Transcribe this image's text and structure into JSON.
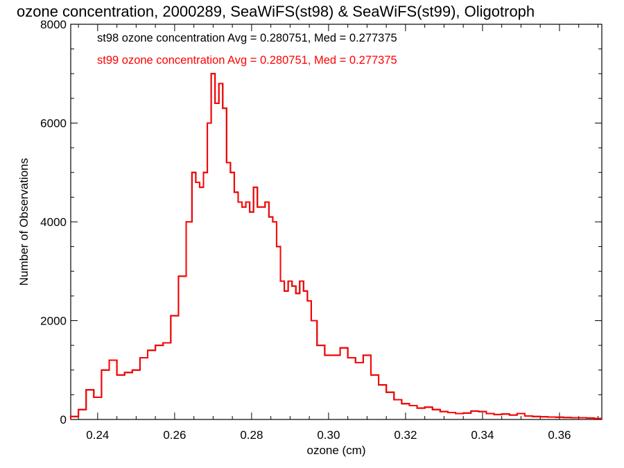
{
  "chart_data": {
    "type": "line",
    "style": "histogram-step",
    "title": "ozone concentration, 2000289, SeaWiFS(st98) & SeaWiFS(st99), Oligotroph",
    "xlabel": "ozone (cm)",
    "ylabel": "Number of Observations",
    "xlim": [
      0.233,
      0.371
    ],
    "ylim": [
      0,
      8000
    ],
    "x_ticks": [
      0.24,
      0.26,
      0.28,
      0.3,
      0.32,
      0.34,
      0.36
    ],
    "x_tick_labels": [
      "0.24",
      "0.26",
      "0.28",
      "0.30",
      "0.32",
      "0.34",
      "0.36"
    ],
    "y_ticks": [
      0,
      2000,
      4000,
      6000,
      8000
    ],
    "y_tick_labels": [
      "0",
      "2000",
      "4000",
      "6000",
      "8000"
    ],
    "grid": false,
    "annotations": [
      {
        "text": "st98 ozone concentration Avg = 0.280751, Med = 0.277375",
        "color": "#000000"
      },
      {
        "text": "st99 ozone concentration Avg = 0.280751, Med = 0.277375",
        "color": "#ff0000"
      }
    ],
    "series": [
      {
        "color": "#000000",
        "x": [
          0.234,
          0.236,
          0.238,
          0.24,
          0.242,
          0.244,
          0.246,
          0.248,
          0.25,
          0.252,
          0.254,
          0.256,
          0.258,
          0.26,
          0.262,
          0.264,
          0.265,
          0.266,
          0.267,
          0.268,
          0.269,
          0.27,
          0.271,
          0.272,
          0.273,
          0.274,
          0.275,
          0.276,
          0.277,
          0.278,
          0.279,
          0.28,
          0.281,
          0.282,
          0.283,
          0.284,
          0.285,
          0.286,
          0.287,
          0.288,
          0.289,
          0.29,
          0.291,
          0.292,
          0.293,
          0.294,
          0.295,
          0.296,
          0.298,
          0.3,
          0.302,
          0.304,
          0.306,
          0.308,
          0.31,
          0.312,
          0.314,
          0.316,
          0.318,
          0.32,
          0.322,
          0.324,
          0.326,
          0.328,
          0.33,
          0.332,
          0.334,
          0.336,
          0.338,
          0.34,
          0.342,
          0.344,
          0.346,
          0.348,
          0.35,
          0.352,
          0.354,
          0.356,
          0.358,
          0.36,
          0.362,
          0.364,
          0.366,
          0.368,
          0.37
        ],
        "values": [
          60,
          200,
          600,
          450,
          1000,
          1200,
          900,
          950,
          1000,
          1250,
          1400,
          1500,
          1550,
          2100,
          2900,
          4000,
          5000,
          4800,
          4700,
          5000,
          6000,
          7000,
          6400,
          6800,
          6300,
          5200,
          5000,
          4600,
          4400,
          4300,
          4400,
          4200,
          4700,
          4300,
          4300,
          4400,
          4100,
          4000,
          3500,
          2800,
          2600,
          2800,
          2700,
          2550,
          2800,
          2600,
          2400,
          2000,
          1500,
          1300,
          1300,
          1450,
          1250,
          1150,
          1300,
          900,
          700,
          550,
          400,
          320,
          280,
          230,
          250,
          200,
          160,
          140,
          120,
          130,
          170,
          160,
          120,
          100,
          110,
          90,
          120,
          70,
          60,
          55,
          50,
          45,
          40,
          35,
          35,
          30,
          20
        ]
      },
      {
        "color": "#ff0000",
        "x": [
          0.234,
          0.236,
          0.238,
          0.24,
          0.242,
          0.244,
          0.246,
          0.248,
          0.25,
          0.252,
          0.254,
          0.256,
          0.258,
          0.26,
          0.262,
          0.264,
          0.265,
          0.266,
          0.267,
          0.268,
          0.269,
          0.27,
          0.271,
          0.272,
          0.273,
          0.274,
          0.275,
          0.276,
          0.277,
          0.278,
          0.279,
          0.28,
          0.281,
          0.282,
          0.283,
          0.284,
          0.285,
          0.286,
          0.287,
          0.288,
          0.289,
          0.29,
          0.291,
          0.292,
          0.293,
          0.294,
          0.295,
          0.296,
          0.298,
          0.3,
          0.302,
          0.304,
          0.306,
          0.308,
          0.31,
          0.312,
          0.314,
          0.316,
          0.318,
          0.32,
          0.322,
          0.324,
          0.326,
          0.328,
          0.33,
          0.332,
          0.334,
          0.336,
          0.338,
          0.34,
          0.342,
          0.344,
          0.346,
          0.348,
          0.35,
          0.352,
          0.354,
          0.356,
          0.358,
          0.36,
          0.362,
          0.364,
          0.366,
          0.368,
          0.37
        ],
        "values": [
          60,
          200,
          600,
          450,
          1000,
          1200,
          900,
          950,
          1000,
          1250,
          1400,
          1500,
          1550,
          2100,
          2900,
          4000,
          5000,
          4800,
          4700,
          5000,
          6000,
          7000,
          6400,
          6800,
          6300,
          5200,
          5000,
          4600,
          4400,
          4300,
          4400,
          4200,
          4700,
          4300,
          4300,
          4400,
          4100,
          4000,
          3500,
          2800,
          2600,
          2800,
          2700,
          2550,
          2800,
          2600,
          2400,
          2000,
          1500,
          1300,
          1300,
          1450,
          1250,
          1150,
          1300,
          900,
          700,
          550,
          400,
          320,
          280,
          230,
          250,
          200,
          160,
          140,
          120,
          130,
          170,
          160,
          120,
          100,
          110,
          90,
          120,
          70,
          60,
          55,
          50,
          45,
          40,
          35,
          35,
          30,
          20
        ]
      }
    ]
  }
}
